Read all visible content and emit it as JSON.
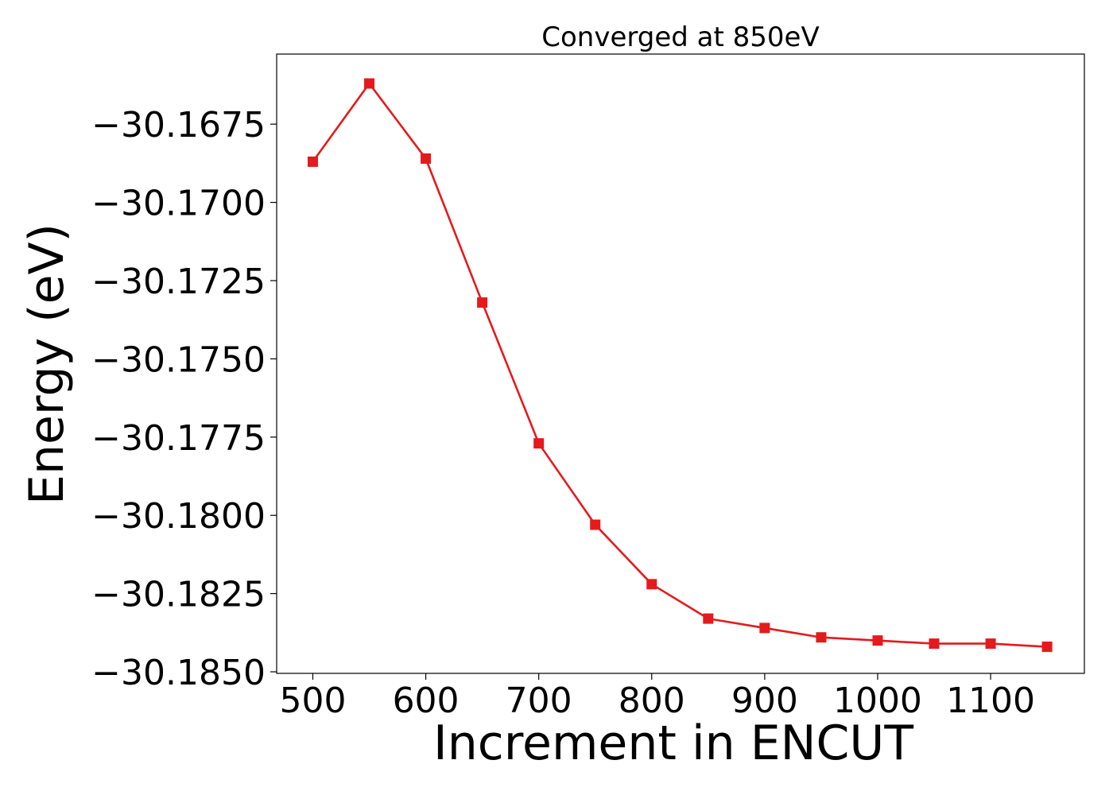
{
  "chart_data": {
    "type": "line",
    "title": "Converged at 850eV",
    "xlabel": "Increment in ENCUT",
    "ylabel": "Energy (eV)",
    "x": [
      500,
      550,
      600,
      650,
      700,
      750,
      800,
      850,
      900,
      950,
      1000,
      1050,
      1100,
      1150
    ],
    "series": [
      {
        "values": [
          -30.1687,
          -30.1662,
          -30.1686,
          -30.1732,
          -30.1777,
          -30.1803,
          -30.1822,
          -30.1833,
          -30.1836,
          -30.1839,
          -30.184,
          -30.1841,
          -30.1841,
          -30.1842
        ],
        "color": "#e41a1c",
        "marker": "square"
      }
    ],
    "xticks": [
      500,
      600,
      700,
      800,
      900,
      1000,
      1100
    ],
    "xtick_labels": [
      "500",
      "600",
      "700",
      "800",
      "900",
      "1000",
      "1100"
    ],
    "yticks": [
      -30.1675,
      -30.17,
      -30.1725,
      -30.175,
      -30.1775,
      -30.18,
      -30.1825,
      -30.185
    ],
    "ytick_labels": [
      "−30.1675",
      "−30.1700",
      "−30.1725",
      "−30.1750",
      "−30.1775",
      "−30.1800",
      "−30.1825",
      "−30.1850"
    ],
    "xlim": [
      468,
      1183
    ],
    "ylim": [
      -30.18505,
      -30.16526
    ],
    "grid": false,
    "legend": false
  }
}
